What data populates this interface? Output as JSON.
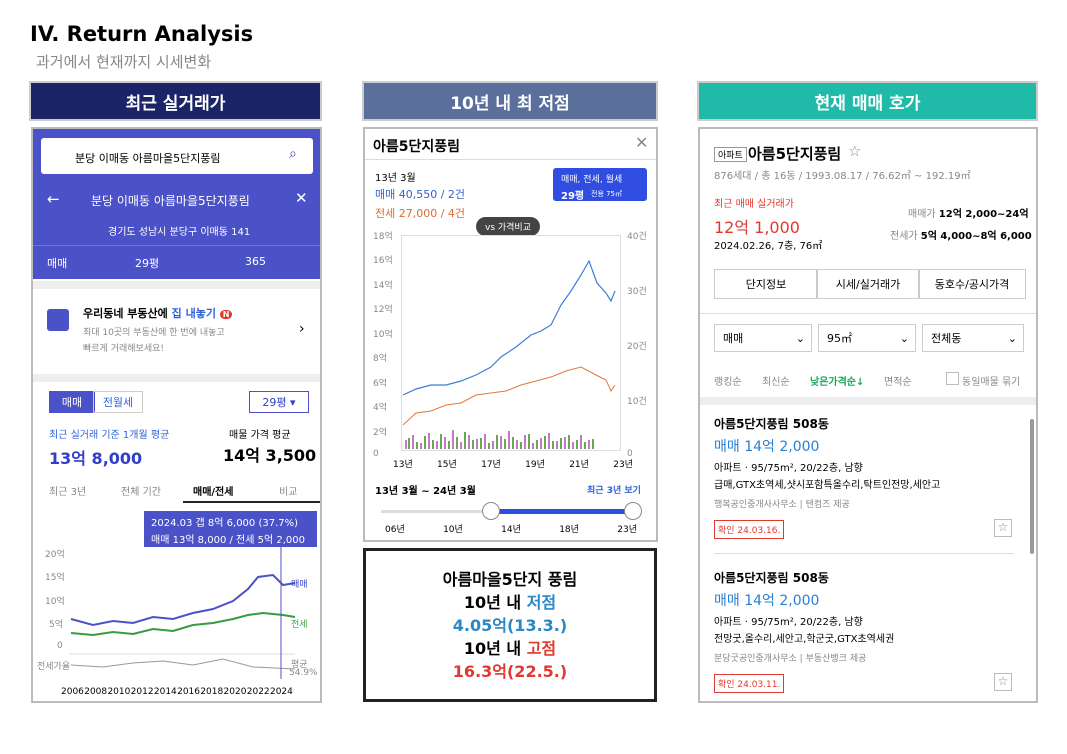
{
  "header": {
    "title": "IV. Return Analysis",
    "subtitle": "과거에서 현재까지 시세변화"
  },
  "panel1": {
    "heading": "최근 실거래가",
    "search": "분당 이매동 아름마을5단지풍림",
    "nav_title": "분당 이매동 아름마을5단지풍림",
    "address": "경기도 성남시 분당구 이매동 141",
    "tabs": [
      "매매",
      "29평",
      "365"
    ],
    "banner": {
      "lead": "우리동네 부동산에 ",
      "highlight": "집 내놓기",
      "badge": "N",
      "lines": [
        "최대 10곳의 부동산에 한 번에 내놓고",
        "빠르게 거래해보세요!"
      ]
    },
    "toggle": [
      "매매",
      "전월세"
    ],
    "size_select": "29평",
    "recent_label": "최근 실거래 기준 1개월 평균",
    "recent_value": "13억 8,000",
    "listing_label": "매물 가격 평균",
    "listing_value": "14억 3,500",
    "period_tabs": [
      "최근 3년",
      "전체 기간",
      "매매/전세",
      "비교"
    ],
    "tooltip": [
      "2024.03 갭 8억 6,000 (37.7%)",
      "매매 13억 8,000 / 전세 5억 2,000"
    ],
    "y_labels": [
      "20억",
      "15억",
      "10억",
      "5억",
      "0"
    ],
    "series_labels": [
      "매매",
      "전세"
    ],
    "ratio_label": "전세가율",
    "avg_label": "평균",
    "avg_value": "54.9%",
    "years": [
      "2006",
      "2008",
      "2010",
      "2012",
      "2014",
      "2016",
      "2018",
      "2020",
      "2022",
      "2024"
    ]
  },
  "panel2": {
    "heading": "10년 내 최 저점",
    "title": "아름5단지풍림",
    "date": "13년 3월",
    "sale": "매매 40,550 / 2건",
    "jeonse": "전세 27,000 / 4건",
    "filter": "매매, 전세, 월세",
    "filter_size": "29평",
    "filter_area": "전용 75㎡",
    "compare": "vs 가격비교",
    "y_left": [
      "18억",
      "16억",
      "14억",
      "12억",
      "10억",
      "8억",
      "6억",
      "4억",
      "2억",
      "0"
    ],
    "y_right": [
      "40건",
      "30건",
      "20건",
      "10건",
      "0"
    ],
    "x_labels": [
      "13년",
      "15년",
      "17년",
      "19년",
      "21년",
      "23년"
    ],
    "range": "13년 3월 ~ 24년 3월",
    "recent": "최근 3년 보기",
    "slider_labels": [
      "06년",
      "10년",
      "14년",
      "18년",
      "23년"
    ]
  },
  "summary": {
    "name": "아름마을5단지 풍림",
    "low_prefix": "10년 내 ",
    "low_word": "저점",
    "low_value": "4.05억(13.3.)",
    "high_prefix": "10년 내 ",
    "high_word": "고점",
    "high_value": "16.3억(22.5.)"
  },
  "panel3": {
    "heading": "현재 매매 호가",
    "badge": "아파트",
    "title": "아름5단지풍림",
    "info": "876세대 / 총 16동 / 1993.08.17 / 76.62㎡ ~ 192.19㎡",
    "recent_label": "최근 매매 실거래가",
    "recent_value": "12억 1,000",
    "recent_detail": "2024.02.26, 7층, 76㎡",
    "sale_label": "매매가",
    "sale_range": "12억 2,000~24억",
    "jeonse_label": "전세가",
    "jeonse_range": "5억 4,000~8억 6,000",
    "buttons": [
      "단지정보",
      "시세/실거래가",
      "동호수/공시가격"
    ],
    "selects": [
      "매매",
      "95㎡",
      "전체동"
    ],
    "sort": [
      "랭킹순",
      "최신순",
      "낮은가격순↓",
      "면적순"
    ],
    "group": "동일매물 묶기",
    "listings": [
      {
        "title": "아름5단지풍림 508동",
        "price": "매매 14억 2,000",
        "spec": "아파트 · 95/75m², 20/22층, 남향",
        "features": "급매,GTX초역세,샷시포함특올수리,탁트인전망,세안고",
        "agent": "행복공인중개사사무소",
        "provider": "텐컴즈 제공",
        "confirmed": "확인 24.03.16."
      },
      {
        "title": "아름5단지풍림 508동",
        "price": "매매 14억 2,000",
        "spec": "아파트 · 95/75m², 20/22층, 남향",
        "features": "전망굿,올수리,세안고,학군굿,GTX초역세권",
        "agent": "분당굿공인중개사무소",
        "provider": "부동산뱅크 제공",
        "confirmed": "확인 24.03.11."
      }
    ]
  }
}
